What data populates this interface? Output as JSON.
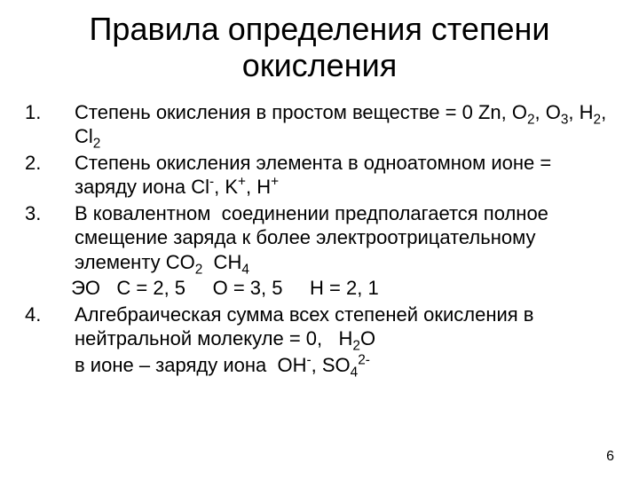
{
  "title": "Правила определения степени окисления",
  "rules": [
    {
      "num": "1.",
      "text_html": "Степень окисления в простом веществе = 0 Zn, O<sub>2</sub>, O<sub>3</sub>, H<sub>2</sub>, Cl<sub>2</sub>"
    },
    {
      "num": "2.",
      "text_html": "Степень окисления элемента в одноатомном ионе = заряду иона Cl<sup>-</sup>, K<sup>+</sup>, H<sup>+</sup>"
    },
    {
      "num": "3.",
      "text_html": "В ковалентном&nbsp; соединении предполагается полное смещение заряда к более электроотрицательному элементу CO<sub>2</sub>&nbsp; CH<sub>4</sub>"
    },
    {
      "num": "4.",
      "text_html": "Алгебраическая сумма всех степеней окисления в нейтральной молекуле = 0, &nbsp;&nbsp;H<sub>2</sub>O"
    }
  ],
  "extra_lines": {
    "eo_line_html": "&nbsp;ЭО &nbsp;&nbsp;C = 2, 5 &nbsp;&nbsp;&nbsp; O = 3, 5 &nbsp;&nbsp;&nbsp; H = 2, 1",
    "ion_line_html": "в ионе – заряду иона&nbsp; OH<sup>-</sup>, SO<sub>4</sub><sup>2-</sup>"
  },
  "page_number": "6",
  "colors": {
    "background": "#ffffff",
    "text": "#000000"
  },
  "typography": {
    "title_fontsize": 36,
    "body_fontsize": 22,
    "pagenum_fontsize": 16,
    "font_family": "Arial"
  }
}
